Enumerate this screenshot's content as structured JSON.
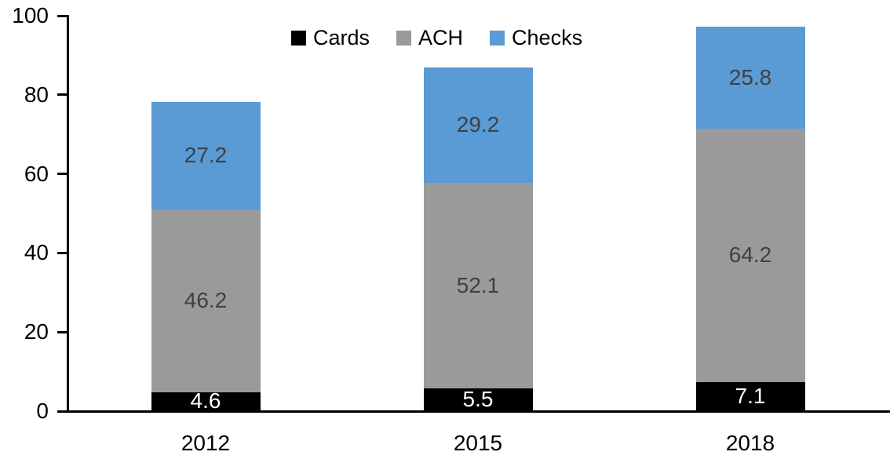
{
  "chart_data": {
    "type": "bar",
    "stacked": true,
    "title": "",
    "xlabel": "",
    "ylabel": "",
    "categories": [
      "2012",
      "2015",
      "2018"
    ],
    "series": [
      {
        "name": "Cards",
        "color": "#000000",
        "label_color": "#ffffff",
        "values": [
          4.6,
          5.5,
          7.1
        ]
      },
      {
        "name": "ACH",
        "color": "#9a9a9a",
        "label_color": "#404040",
        "values": [
          46.2,
          52.1,
          64.2
        ]
      },
      {
        "name": "Checks",
        "color": "#5b9bd5",
        "label_color": "#404040",
        "values": [
          27.2,
          29.2,
          25.8
        ]
      }
    ],
    "totals": [
      78.0,
      86.8,
      97.1
    ],
    "ylim": [
      0,
      100
    ],
    "yticks": [
      0,
      20,
      40,
      60,
      80,
      100
    ],
    "grid": false,
    "legend_position": "top-center",
    "legend_labels": [
      "Cards",
      "ACH",
      "Checks"
    ],
    "axis_color": "#000000",
    "tick_label_color": "#000000"
  }
}
